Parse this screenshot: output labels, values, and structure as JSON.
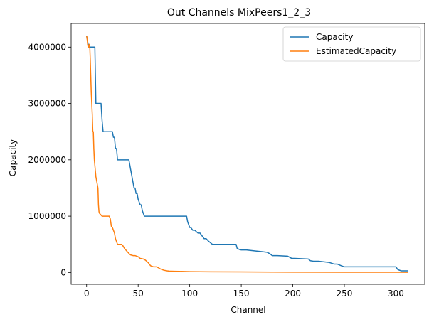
{
  "chart_data": {
    "type": "line",
    "title": "Out Channels MixPeers1_2_3",
    "xlabel": "Channel",
    "ylabel": "Capacity",
    "xlim": [
      -15,
      328
    ],
    "ylim": [
      -210000,
      4420000
    ],
    "xticks": [
      0,
      50,
      100,
      150,
      200,
      250,
      300
    ],
    "yticks": [
      0,
      1000000,
      2000000,
      3000000,
      4000000
    ],
    "xtick_labels": [
      "0",
      "50",
      "100",
      "150",
      "200",
      "250",
      "300"
    ],
    "ytick_labels": [
      "0",
      "1000000",
      "2000000",
      "3000000",
      "4000000"
    ],
    "grid": false,
    "legend_position": "top-right",
    "series": [
      {
        "name": "Capacity",
        "color": "#1f77b4",
        "x": [
          0,
          1,
          2,
          3,
          4,
          5,
          6,
          7,
          8,
          9,
          10,
          11,
          12,
          13,
          14,
          15,
          16,
          17,
          18,
          19,
          20,
          21,
          22,
          23,
          24,
          25,
          26,
          27,
          28,
          29,
          30,
          31,
          32,
          33,
          34,
          35,
          36,
          37,
          38,
          39,
          40,
          41,
          42,
          43,
          44,
          45,
          46,
          47,
          48,
          49,
          50,
          51,
          52,
          53,
          54,
          55,
          56,
          57,
          58,
          60,
          65,
          70,
          80,
          90,
          97,
          98,
          99,
          100,
          101,
          103,
          105,
          108,
          110,
          112,
          114,
          116,
          118,
          120,
          122,
          125,
          130,
          140,
          145,
          146,
          148,
          150,
          155,
          165,
          170,
          175,
          178,
          180,
          185,
          195,
          197,
          199,
          202,
          215,
          217,
          220,
          225,
          235,
          240,
          243,
          247,
          250,
          255,
          270,
          300,
          302,
          305,
          312
        ],
        "y": [
          4200000,
          4100000,
          4000000,
          4000000,
          4000000,
          4000000,
          4000000,
          4000000,
          4000000,
          3000000,
          3000000,
          3000000,
          3000000,
          3000000,
          3000000,
          2700000,
          2500000,
          2500000,
          2500000,
          2500000,
          2500000,
          2500000,
          2500000,
          2500000,
          2500000,
          2500000,
          2400000,
          2400000,
          2200000,
          2200000,
          2000000,
          2000000,
          2000000,
          2000000,
          2000000,
          2000000,
          2000000,
          2000000,
          2000000,
          2000000,
          2000000,
          2000000,
          1900000,
          1800000,
          1700000,
          1600000,
          1500000,
          1500000,
          1400000,
          1400000,
          1300000,
          1250000,
          1200000,
          1200000,
          1100000,
          1050000,
          1000000,
          1000000,
          1000000,
          1000000,
          1000000,
          1000000,
          1000000,
          1000000,
          1000000,
          900000,
          850000,
          800000,
          800000,
          750000,
          750000,
          700000,
          700000,
          650000,
          600000,
          600000,
          560000,
          530000,
          500000,
          500000,
          500000,
          500000,
          500000,
          430000,
          410000,
          400000,
          400000,
          380000,
          370000,
          360000,
          330000,
          300000,
          300000,
          290000,
          270000,
          250000,
          250000,
          240000,
          210000,
          200000,
          200000,
          180000,
          150000,
          150000,
          120000,
          100000,
          100000,
          100000,
          100000,
          50000,
          30000,
          30000
        ]
      },
      {
        "name": "EstimatedCapacity",
        "color": "#ff7f0e",
        "x": [
          0,
          0.5,
          1,
          1.5,
          2,
          2.5,
          3,
          3.5,
          4,
          4.5,
          5,
          5.5,
          6,
          6.5,
          7,
          7.5,
          8,
          8.5,
          9,
          9.5,
          10,
          10.5,
          11,
          11.5,
          12,
          12.5,
          13,
          14,
          15,
          16,
          17,
          18,
          19,
          20,
          21,
          22,
          23,
          24,
          25,
          26,
          27,
          28,
          29,
          30,
          31,
          32,
          33,
          34,
          35,
          36,
          37,
          38,
          39,
          40,
          41,
          42,
          43,
          45,
          47,
          50,
          52,
          55,
          57,
          60,
          62,
          65,
          68,
          70,
          72,
          75,
          78,
          80,
          85,
          90,
          100,
          110,
          120,
          150,
          180,
          200,
          250,
          300,
          312
        ],
        "y": [
          4200000,
          4150000,
          4050000,
          4000000,
          4000000,
          4050000,
          4050000,
          3800000,
          3500000,
          3200000,
          3000000,
          2800000,
          2500000,
          2500000,
          2200000,
          2000000,
          1900000,
          1800000,
          1700000,
          1650000,
          1600000,
          1550000,
          1500000,
          1200000,
          1080000,
          1050000,
          1040000,
          1020000,
          1000000,
          1000000,
          1000000,
          1000000,
          1000000,
          1000000,
          1000000,
          1000000,
          950000,
          820000,
          800000,
          750000,
          700000,
          600000,
          550000,
          500000,
          500000,
          500000,
          500000,
          500000,
          480000,
          450000,
          420000,
          400000,
          380000,
          360000,
          340000,
          320000,
          310000,
          300000,
          300000,
          280000,
          250000,
          240000,
          220000,
          170000,
          120000,
          100000,
          100000,
          80000,
          60000,
          40000,
          30000,
          25000,
          22000,
          20000,
          16000,
          14000,
          12000,
          10000,
          8000,
          6000,
          5000,
          4000,
          3000
        ]
      }
    ]
  }
}
